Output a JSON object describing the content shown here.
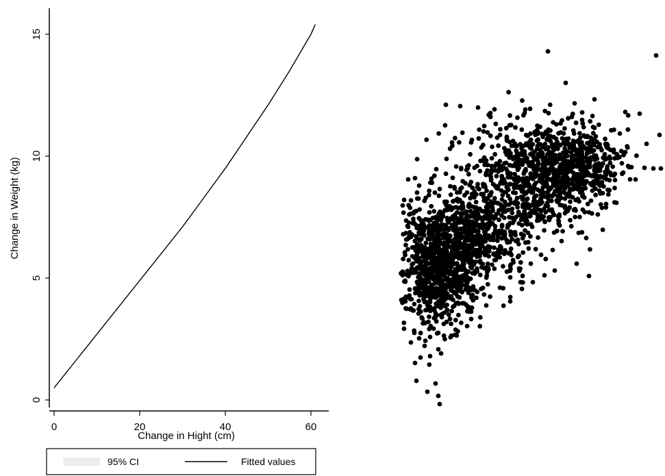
{
  "chart_data": [
    {
      "type": "line",
      "xlabel": "Change in Hight (cm)",
      "ylabel": "Change in Weight (kg)",
      "xlim": [
        0,
        62
      ],
      "ylim": [
        0,
        16
      ],
      "xticks": [
        "0",
        "20",
        "40",
        "60"
      ],
      "yticks": [
        "0",
        "5",
        "10",
        "15"
      ],
      "series": [
        {
          "name": "Fitted values",
          "x": [
            0,
            5,
            10,
            15,
            20,
            25,
            30,
            35,
            40,
            45,
            50,
            55,
            60,
            61
          ],
          "y": [
            0.5,
            1.6,
            2.7,
            3.8,
            4.9,
            6.0,
            7.1,
            8.3,
            9.5,
            10.8,
            12.1,
            13.5,
            15.0,
            15.4
          ]
        }
      ],
      "legend": {
        "position": "bottom-left",
        "entries": [
          "95% CI",
          "Fitted values"
        ]
      },
      "grid": false
    },
    {
      "type": "scatter",
      "description_point_clusters": [
        {
          "cx": 0.12,
          "cy": 5.2,
          "spread": "dense"
        },
        {
          "cx": 0.45,
          "cy": 7.0,
          "spread": "dense"
        },
        {
          "cx": 0.75,
          "cy": 9.0,
          "spread": "dense"
        }
      ],
      "grid": false
    }
  ],
  "colors": {
    "marker": "#000000",
    "line": "#000000",
    "background": "#ffffff"
  }
}
